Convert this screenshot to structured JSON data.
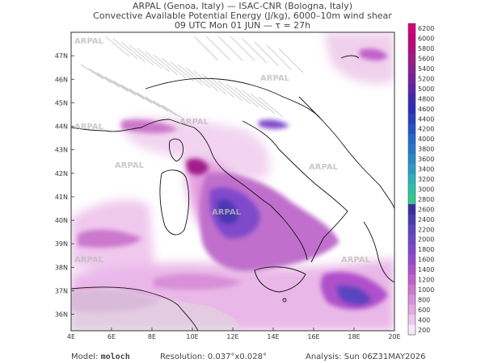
{
  "header": {
    "line1": "ARPAL (Genoa, Italy)  —  ISAC-CNR (Bologna, Italy)",
    "line2": "Convective Available Potential Energy (J/kg), 6000–10m wind shear",
    "line3": "09 UTC Mon 01 JUN  —  τ = 27h"
  },
  "watermark": "ARPAL",
  "axes": {
    "lat_labels": [
      "47N",
      "46N",
      "45N",
      "44N",
      "43N",
      "42N",
      "41N",
      "40N",
      "39N",
      "38N",
      "37N",
      "36N"
    ],
    "lat_values": [
      47,
      46,
      45,
      44,
      43,
      42,
      41,
      40,
      39,
      38,
      37,
      36
    ],
    "lon_labels": [
      "4E",
      "6E",
      "8E",
      "10E",
      "12E",
      "14E",
      "16E",
      "18E",
      "20E"
    ],
    "lon_values": [
      4,
      6,
      8,
      10,
      12,
      14,
      16,
      18,
      20
    ],
    "lat_range": [
      35.3,
      48.0
    ],
    "lon_range": [
      4,
      20
    ]
  },
  "colorbar": {
    "labels": [
      "6200",
      "6000",
      "5800",
      "5600",
      "5400",
      "5200",
      "5000",
      "4800",
      "4600",
      "4400",
      "4200",
      "4000",
      "3800",
      "3600",
      "3400",
      "3200",
      "3000",
      "2800",
      "2600",
      "2400",
      "2200",
      "2000",
      "1800",
      "1600",
      "1400",
      "1200",
      "1000",
      "800",
      "600",
      "400",
      "200"
    ],
    "colors": [
      "#d5007a",
      "#c4007a",
      "#b20a80",
      "#a01a88",
      "#8a208e",
      "#74209a",
      "#5a24a8",
      "#3f27b0",
      "#2b2db8",
      "#2640c0",
      "#2452c8",
      "#2466cc",
      "#2478cc",
      "#268ac8",
      "#2a9cc0",
      "#2eb0b4",
      "#2ec0a4",
      "#34c88e",
      "#3a2c9c",
      "#4a38b0",
      "#5a44c0",
      "#6a48c8",
      "#8048cc",
      "#9848cc",
      "#b050cc",
      "#c060cc",
      "#cc78cc",
      "#d890d8",
      "#e4aae4",
      "#eec8ee",
      "#f8e8f8"
    ]
  },
  "footer": {
    "model_label": "Model:",
    "model_value": "moloch",
    "resolution": "Resolution: 0.037°x0.028°",
    "analysis": "Analysis: Sun 06Z31MAY2026"
  }
}
